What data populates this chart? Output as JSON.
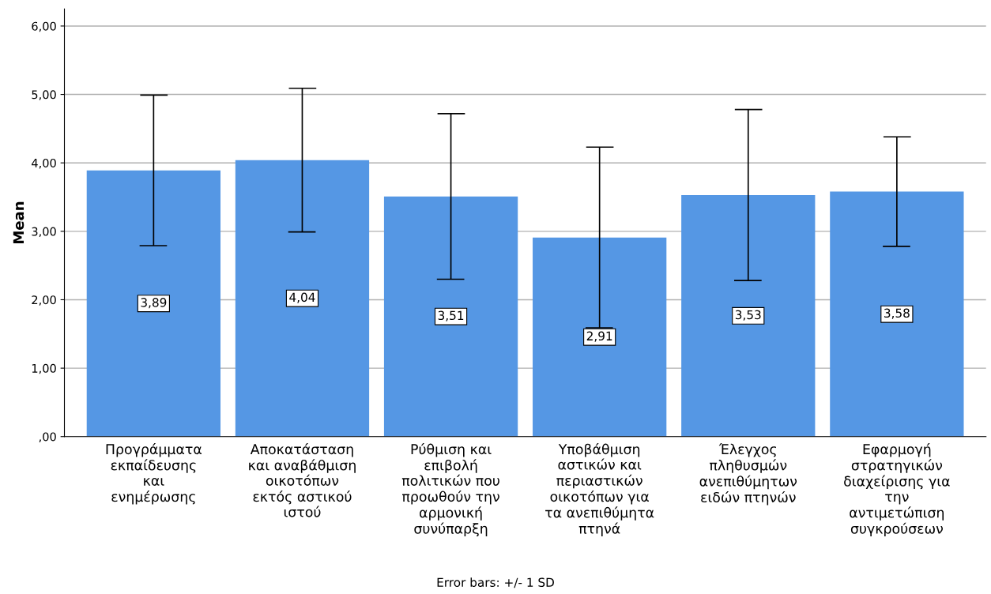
{
  "chart_data": {
    "type": "bar",
    "ylabel": "Mean",
    "categories": [
      "Προγράμματα\nεκπαίδευσης\nκαι\nενημέρωσης",
      "Αποκατάσταση\nκαι αναβάθμιση\nοικοτόπων\nεκτός αστικού\nιστού",
      "Ρύθμιση και\nεπιβολή\nπολιτικών που\nπροωθούν την\nαρμονική\nσυνύπαρξη",
      "Υποβάθμιση\nαστικών και\nπεριαστικών\nοικοτόπων για\nτα ανεπιθύμητα\nπτηνά",
      "Έλεγχος\nπληθυσμών\nανεπιθύμητων\nειδών πτηνών",
      "Εφαρμογή\nστρατηγικών\nδιαχείρισης για\nτην\nαντιμετώπιση\nσυγκρούσεων"
    ],
    "values": [
      3.89,
      4.04,
      3.51,
      2.91,
      3.53,
      3.58
    ],
    "value_labels": [
      "3,89",
      "4,04",
      "3,51",
      "2,91",
      "3,53",
      "3,58"
    ],
    "errors": [
      1.1,
      1.05,
      1.21,
      1.32,
      1.25,
      0.8
    ],
    "color": "#5597e4",
    "ylim": [
      0,
      6.25
    ],
    "yticks": [
      {
        "value": 0,
        "label": ",00"
      },
      {
        "value": 1,
        "label": "1,00"
      },
      {
        "value": 2,
        "label": "2,00"
      },
      {
        "value": 3,
        "label": "3,00"
      },
      {
        "value": 4,
        "label": "4,00"
      },
      {
        "value": 5,
        "label": "5,00"
      },
      {
        "value": 6,
        "label": "6,00"
      }
    ],
    "grid": "y",
    "annotations": [
      "Error bars: +/- 1 SD"
    ]
  }
}
